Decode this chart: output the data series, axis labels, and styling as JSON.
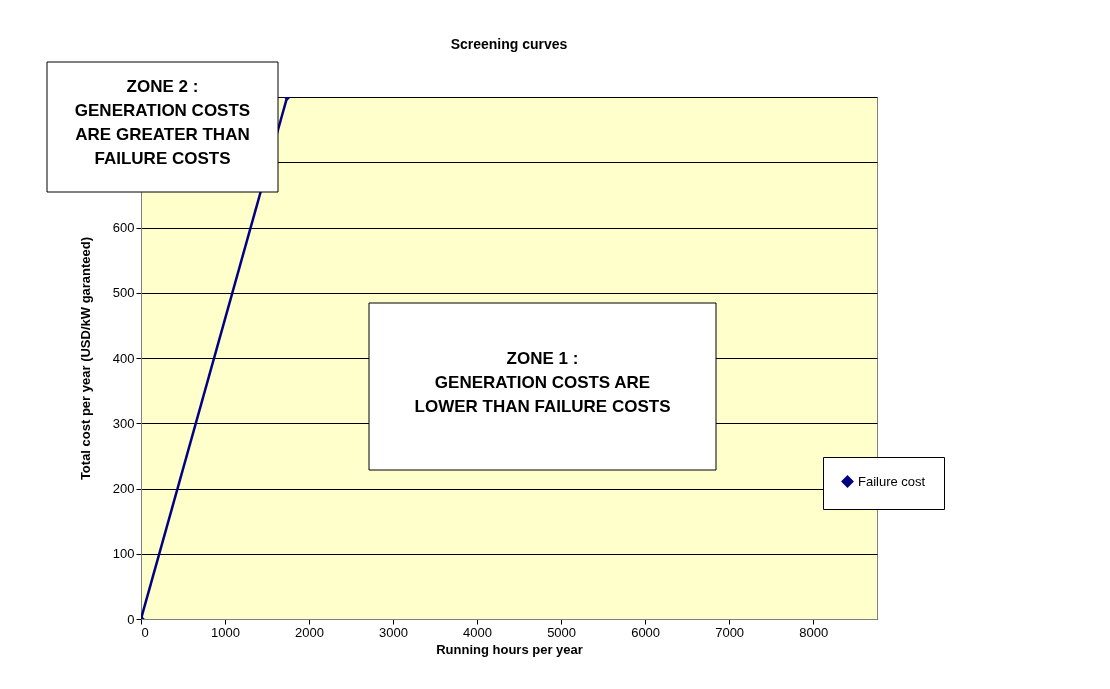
{
  "chart_data": {
    "type": "line",
    "title": "Screening curves",
    "xlabel": "Running hours per year",
    "ylabel": "Total cost per year (USD/kW garanteed)",
    "x": [
      0,
      1740
    ],
    "series": [
      {
        "name": "Failure cost",
        "color": "#000080",
        "values": [
          0,
          800
        ]
      }
    ],
    "xlim": [
      0,
      8760
    ],
    "xticks": [
      0,
      1000,
      2000,
      3000,
      4000,
      5000,
      6000,
      7000,
      8000
    ],
    "ylim": [
      0,
      800
    ],
    "yticks": [
      0,
      100,
      200,
      300,
      400,
      500,
      600,
      {
        "value": 700,
        "label": null
      },
      {
        "value": 800,
        "label": null
      }
    ],
    "grid": "y",
    "legend": "right",
    "marker": "diamond",
    "line_style": "solid",
    "annotations": [
      "ZONE 2 :\nGENERATION COSTS\nARE GREATER THAN\nFAILURE COSTS",
      "ZONE 1 :\nGENERATION COSTS ARE\nLOWER THAN FAILURE COSTS"
    ]
  }
}
